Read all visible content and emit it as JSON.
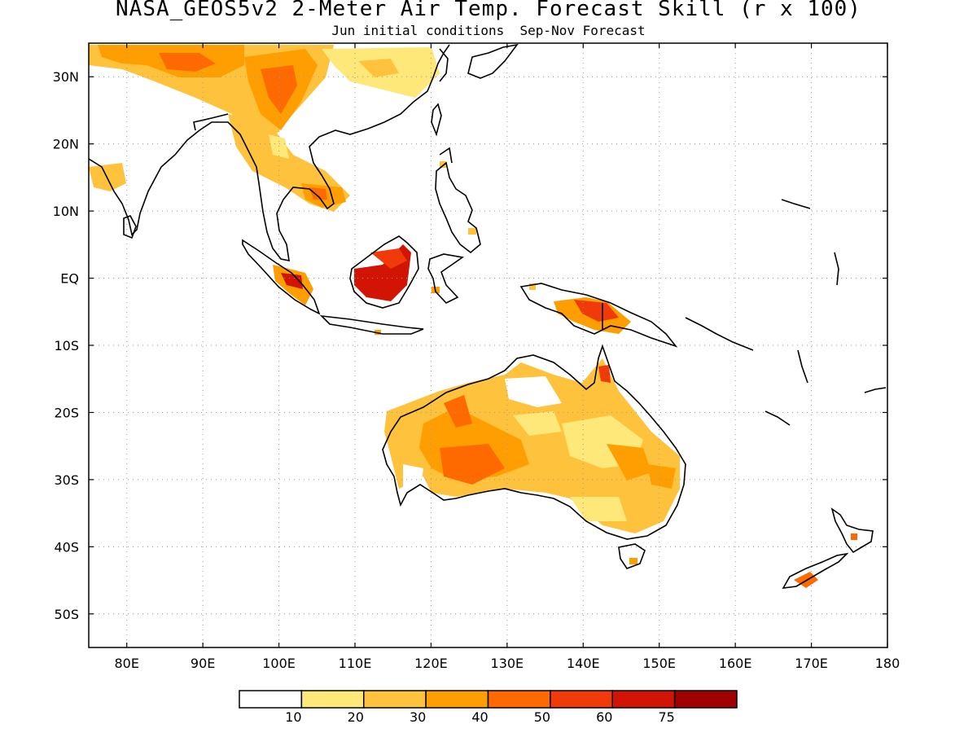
{
  "title": "NASA_GEOS5v2 2-Meter Air Temp. Forecast Skill (r x 100)",
  "subtitle": "Jun initial conditions  Sep-Nov Forecast",
  "map": {
    "lon_range": [
      75,
      180
    ],
    "lat_range": [
      -55,
      35
    ],
    "lat_labels": [
      "30N",
      "20N",
      "10N",
      "EQ",
      "10S",
      "20S",
      "30S",
      "40S",
      "50S"
    ],
    "lat_values": [
      30,
      20,
      10,
      0,
      -10,
      -20,
      -30,
      -40,
      -50
    ],
    "lon_labels": [
      "80E",
      "90E",
      "100E",
      "110E",
      "120E",
      "130E",
      "140E",
      "150E",
      "160E",
      "170E",
      "180"
    ],
    "lon_values": [
      80,
      90,
      100,
      110,
      120,
      130,
      140,
      150,
      160,
      170,
      180
    ],
    "grid": "dotted"
  },
  "colorbar": {
    "labels": [
      "10",
      "20",
      "30",
      "40",
      "50",
      "60",
      "75"
    ],
    "colors": [
      "#ffffff",
      "#ffe87a",
      "#ffc23c",
      "#ff9e00",
      "#ff6a00",
      "#f03a0a",
      "#d21405",
      "#a00000"
    ]
  }
}
